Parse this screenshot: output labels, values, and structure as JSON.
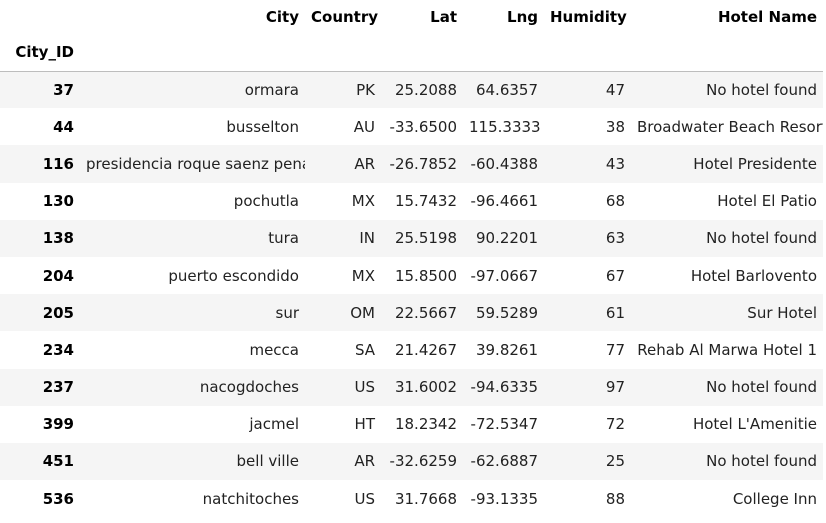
{
  "header": {
    "columns": [
      "City",
      "Country",
      "Lat",
      "Lng",
      "Humidity",
      "Hotel Name"
    ],
    "index_name": "City_ID"
  },
  "rows": [
    {
      "id": "37",
      "city": "ormara",
      "country": "PK",
      "lat": "25.2088",
      "lng": "64.6357",
      "humidity": "47",
      "hotel": "No hotel found"
    },
    {
      "id": "44",
      "city": "busselton",
      "country": "AU",
      "lat": "-33.6500",
      "lng": "115.3333",
      "humidity": "38",
      "hotel": "Broadwater Beach Resort"
    },
    {
      "id": "116",
      "city": "presidencia roque saenz pena",
      "country": "AR",
      "lat": "-26.7852",
      "lng": "-60.4388",
      "humidity": "43",
      "hotel": "Hotel Presidente"
    },
    {
      "id": "130",
      "city": "pochutla",
      "country": "MX",
      "lat": "15.7432",
      "lng": "-96.4661",
      "humidity": "68",
      "hotel": "Hotel El Patio"
    },
    {
      "id": "138",
      "city": "tura",
      "country": "IN",
      "lat": "25.5198",
      "lng": "90.2201",
      "humidity": "63",
      "hotel": "No hotel found"
    },
    {
      "id": "204",
      "city": "puerto escondido",
      "country": "MX",
      "lat": "15.8500",
      "lng": "-97.0667",
      "humidity": "67",
      "hotel": "Hotel Barlovento"
    },
    {
      "id": "205",
      "city": "sur",
      "country": "OM",
      "lat": "22.5667",
      "lng": "59.5289",
      "humidity": "61",
      "hotel": "Sur Hotel"
    },
    {
      "id": "234",
      "city": "mecca",
      "country": "SA",
      "lat": "21.4267",
      "lng": "39.8261",
      "humidity": "77",
      "hotel": "Rehab Al Marwa Hotel 1"
    },
    {
      "id": "237",
      "city": "nacogdoches",
      "country": "US",
      "lat": "31.6002",
      "lng": "-94.6335",
      "humidity": "97",
      "hotel": "No hotel found"
    },
    {
      "id": "399",
      "city": "jacmel",
      "country": "HT",
      "lat": "18.2342",
      "lng": "-72.5347",
      "humidity": "72",
      "hotel": "Hotel L'Amenitie"
    },
    {
      "id": "451",
      "city": "bell ville",
      "country": "AR",
      "lat": "-32.6259",
      "lng": "-62.6887",
      "humidity": "25",
      "hotel": "No hotel found"
    },
    {
      "id": "536",
      "city": "natchitoches",
      "country": "US",
      "lat": "31.7668",
      "lng": "-93.1335",
      "humidity": "88",
      "hotel": "College Inn"
    }
  ]
}
